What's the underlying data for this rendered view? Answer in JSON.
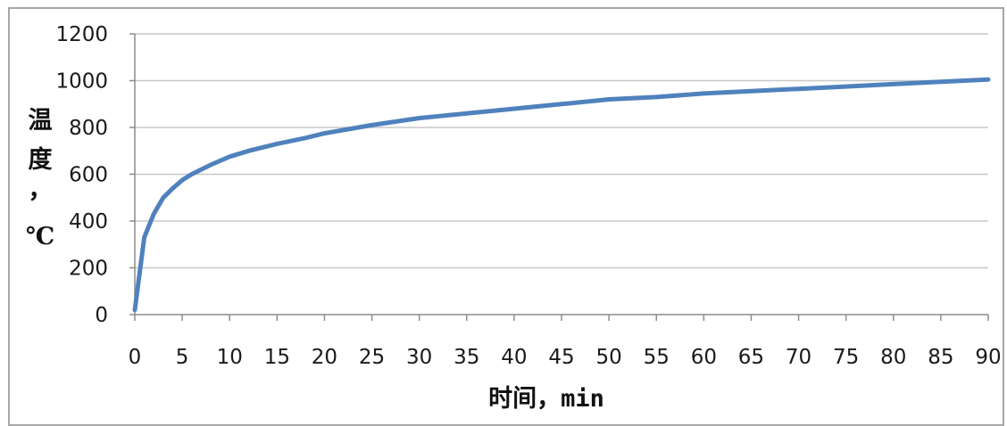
{
  "chart_data": {
    "type": "line",
    "title": "",
    "xlabel": "时间，min",
    "ylabel": "温度，℃",
    "ylabel_chars": [
      "温",
      "度",
      "，",
      "℃"
    ],
    "xlabel_main": "时间，",
    "xlabel_unit": "min",
    "xlim": [
      0,
      90
    ],
    "ylim": [
      0,
      1200
    ],
    "x_ticks": [
      0,
      5,
      10,
      15,
      20,
      25,
      30,
      35,
      40,
      45,
      50,
      55,
      60,
      65,
      70,
      75,
      80,
      85,
      90
    ],
    "y_ticks": [
      0,
      200,
      400,
      600,
      800,
      1000,
      1200
    ],
    "grid": true,
    "legend": "none",
    "series": [
      {
        "color": "#4f81bd",
        "x": [
          0,
          1,
          2,
          3,
          4,
          5,
          6,
          8,
          10,
          12,
          15,
          18,
          20,
          25,
          30,
          35,
          40,
          45,
          50,
          55,
          60,
          65,
          70,
          75,
          80,
          85,
          90
        ],
        "y": [
          20,
          330,
          430,
          500,
          540,
          575,
          600,
          640,
          675,
          700,
          730,
          755,
          775,
          810,
          840,
          860,
          880,
          900,
          920,
          930,
          945,
          955,
          965,
          975,
          985,
          995,
          1005
        ]
      }
    ]
  }
}
